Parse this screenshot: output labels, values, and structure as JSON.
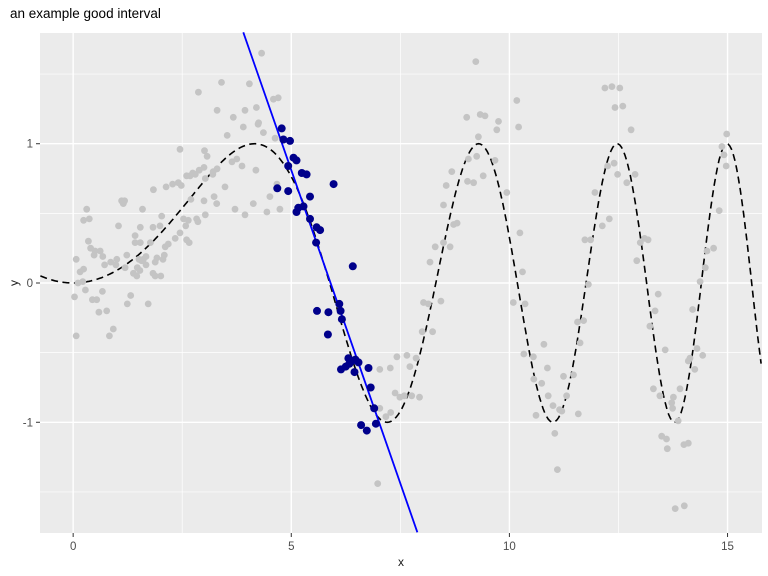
{
  "title": "an example good interval",
  "axes": {
    "x_label": "x",
    "y_label": "y",
    "x_tick_labels": [
      "0",
      "5",
      "10",
      "15"
    ],
    "y_tick_labels": [
      "-1",
      "0",
      "1"
    ]
  },
  "style": {
    "page_bg": "#FFFFFF",
    "panel_bg": "#EBEBEB",
    "grid_color": "#FFFFFF",
    "tick_color": "#333333",
    "tick_label_color": "#4D4D4D",
    "axis_title_color": "#1A1A1A",
    "title_color": "#000000",
    "gray_point_color": "#C4C4C4",
    "navy_point_color": "#00008B",
    "blue_line_color": "#0000FF",
    "curve_color": "#000000"
  },
  "chart_data": {
    "type": "scatter",
    "title": "an example good interval",
    "xlabel": "x",
    "ylabel": "y",
    "xlim": [
      -0.76,
      15.79
    ],
    "ylim": [
      -1.795,
      1.795
    ],
    "x_ticks": [
      0,
      5,
      10,
      15
    ],
    "y_ticks": [
      -1,
      0,
      1
    ],
    "x_minor_ticks": [
      2.5,
      7.5,
      12.5
    ],
    "y_minor_ticks": [
      -1.5,
      -0.5,
      0.5,
      1.5
    ],
    "grid": true,
    "legend": false,
    "series": [
      {
        "name": "background points",
        "type": "scatter",
        "color": "#C4C4C4",
        "radius": 3.4,
        "points": [
          [
            0.03,
            -0.1
          ],
          [
            0.07,
            -0.38
          ],
          [
            0.07,
            0.17
          ],
          [
            0.11,
            0.0
          ],
          [
            0.16,
            0.08
          ],
          [
            0.22,
            0.01
          ],
          [
            0.24,
            0.45
          ],
          [
            0.24,
            0.1
          ],
          [
            0.28,
            -0.05
          ],
          [
            0.31,
            0.53
          ],
          [
            0.35,
            0.3
          ],
          [
            0.37,
            0.46
          ],
          [
            0.4,
            0.25
          ],
          [
            0.44,
            -0.12
          ],
          [
            0.48,
            0.2
          ],
          [
            0.5,
            0.23
          ],
          [
            0.54,
            -0.12
          ],
          [
            0.59,
            -0.21
          ],
          [
            0.62,
            0.23
          ],
          [
            0.67,
            -0.06
          ],
          [
            0.68,
            0.19
          ],
          [
            0.72,
            0.13
          ],
          [
            0.77,
            -0.2
          ],
          [
            0.83,
            -0.38
          ],
          [
            0.86,
            0.15
          ],
          [
            0.92,
            -0.33
          ],
          [
            0.98,
            0.13
          ],
          [
            1.0,
            0.17
          ],
          [
            1.04,
            0.41
          ],
          [
            1.11,
            0.59
          ],
          [
            1.15,
            0.57
          ],
          [
            1.18,
            0.59
          ],
          [
            1.19,
            0.11
          ],
          [
            1.23,
            0.2
          ],
          [
            1.24,
            -0.15
          ],
          [
            1.32,
            -0.09
          ],
          [
            1.38,
            0.07
          ],
          [
            1.42,
            0.29
          ],
          [
            1.42,
            0.34
          ],
          [
            1.46,
            0.05
          ],
          [
            1.47,
            0.11
          ],
          [
            1.51,
            0.17
          ],
          [
            1.53,
            0.09
          ],
          [
            1.54,
            0.4
          ],
          [
            1.54,
            0.29
          ],
          [
            1.57,
            0.16
          ],
          [
            1.59,
            0.53
          ],
          [
            1.61,
            0.17
          ],
          [
            1.67,
            0.19
          ],
          [
            1.67,
            0.13
          ],
          [
            1.72,
            -0.15
          ],
          [
            1.77,
            0.29
          ],
          [
            1.83,
            0.4
          ],
          [
            1.83,
            0.07
          ],
          [
            1.84,
            0.67
          ],
          [
            1.88,
            0.15
          ],
          [
            1.88,
            0.05
          ],
          [
            1.92,
            0.18
          ],
          [
            1.99,
            0.41
          ],
          [
            2.01,
            0.05
          ],
          [
            2.03,
            0.48
          ],
          [
            2.06,
            0.17
          ],
          [
            2.09,
            0.2
          ],
          [
            2.11,
            0.26
          ],
          [
            2.13,
            0.69
          ],
          [
            2.18,
            0.28
          ],
          [
            2.28,
            0.71
          ],
          [
            2.34,
            0.32
          ],
          [
            2.41,
            0.72
          ],
          [
            2.45,
            0.96
          ],
          [
            2.45,
            0.36
          ],
          [
            2.48,
            0.7
          ],
          [
            2.53,
            0.46
          ],
          [
            2.58,
            0.41
          ],
          [
            2.6,
            0.77
          ],
          [
            2.6,
            0.31
          ],
          [
            2.64,
            0.45
          ],
          [
            2.66,
            0.29
          ],
          [
            2.68,
            0.77
          ],
          [
            2.7,
            0.6
          ],
          [
            2.74,
            0.79
          ],
          [
            2.8,
            0.78
          ],
          [
            2.83,
            0.46
          ],
          [
            2.86,
            0.44
          ],
          [
            2.87,
            1.37
          ],
          [
            2.89,
            0.81
          ],
          [
            3.0,
            0.83
          ],
          [
            3.0,
            0.59
          ],
          [
            3.01,
            0.95
          ],
          [
            3.03,
            0.75
          ],
          [
            3.03,
            0.49
          ],
          [
            3.07,
            0.91
          ],
          [
            3.2,
            0.78
          ],
          [
            3.21,
            0.8
          ],
          [
            3.23,
            0.62
          ],
          [
            3.29,
            0.57
          ],
          [
            3.3,
            1.24
          ],
          [
            3.3,
            0.82
          ],
          [
            3.4,
            1.44
          ],
          [
            3.48,
            0.69
          ],
          [
            3.53,
            1.06
          ],
          [
            3.64,
            0.87
          ],
          [
            3.67,
            1.19
          ],
          [
            3.71,
            0.53
          ],
          [
            3.75,
            0.89
          ],
          [
            3.87,
            0.84
          ],
          [
            3.9,
            1.12
          ],
          [
            3.94,
            1.24
          ],
          [
            3.94,
            0.49
          ],
          [
            4.04,
            1.43
          ],
          [
            4.13,
            0.57
          ],
          [
            4.19,
            0.81
          ],
          [
            4.2,
            1.26
          ],
          [
            4.24,
            1.14
          ],
          [
            4.25,
            1.15
          ],
          [
            4.32,
            1.65
          ],
          [
            4.36,
            1.08
          ],
          [
            4.44,
            0.51
          ],
          [
            4.51,
            0.62
          ],
          [
            4.59,
            1.32
          ],
          [
            4.63,
            1.04
          ],
          [
            4.67,
            0.71
          ],
          [
            4.7,
            1.33
          ],
          [
            4.74,
            0.53
          ],
          [
            6.98,
            -1.44
          ],
          [
            7.03,
            -0.62
          ],
          [
            7.03,
            -0.9
          ],
          [
            7.17,
            -0.96
          ],
          [
            7.27,
            -0.61
          ],
          [
            7.28,
            -0.93
          ],
          [
            7.38,
            -0.79
          ],
          [
            7.42,
            -0.53
          ],
          [
            7.49,
            -0.82
          ],
          [
            7.59,
            -0.81
          ],
          [
            7.65,
            -0.52
          ],
          [
            7.72,
            -0.6
          ],
          [
            7.76,
            -0.81
          ],
          [
            7.86,
            -0.54
          ],
          [
            7.94,
            -0.82
          ],
          [
            8.0,
            -0.35
          ],
          [
            8.03,
            -0.14
          ],
          [
            8.14,
            -0.15
          ],
          [
            8.18,
            0.15
          ],
          [
            8.24,
            -0.35
          ],
          [
            8.3,
            0.26
          ],
          [
            8.43,
            -0.13
          ],
          [
            8.49,
            0.29
          ],
          [
            8.49,
            0.56
          ],
          [
            8.55,
            0.7
          ],
          [
            8.64,
            0.26
          ],
          [
            8.68,
            0.8
          ],
          [
            8.72,
            0.42
          ],
          [
            8.8,
            0.43
          ],
          [
            9.02,
            1.19
          ],
          [
            9.04,
            0.73
          ],
          [
            9.06,
            0.89
          ],
          [
            9.18,
            0.72
          ],
          [
            9.23,
            1.59
          ],
          [
            9.25,
            0.91
          ],
          [
            9.29,
            1.05
          ],
          [
            9.33,
            1.21
          ],
          [
            9.4,
            0.77
          ],
          [
            9.44,
            1.2
          ],
          [
            9.67,
            0.88
          ],
          [
            9.71,
            1.1
          ],
          [
            9.75,
            1.16
          ],
          [
            9.94,
            0.65
          ],
          [
            10.09,
            -0.14
          ],
          [
            10.17,
            1.31
          ],
          [
            10.21,
            1.12
          ],
          [
            10.24,
            0.36
          ],
          [
            10.3,
            0.08
          ],
          [
            10.33,
            -0.51
          ],
          [
            10.36,
            -0.15
          ],
          [
            10.55,
            -0.53
          ],
          [
            10.56,
            -0.69
          ],
          [
            10.61,
            -0.95
          ],
          [
            10.74,
            -0.72
          ],
          [
            10.79,
            -0.44
          ],
          [
            10.87,
            -0.61
          ],
          [
            10.89,
            -0.81
          ],
          [
            11.0,
            -0.88
          ],
          [
            11.04,
            -1.08
          ],
          [
            11.1,
            -1.34
          ],
          [
            11.15,
            -0.91
          ],
          [
            11.2,
            -0.92
          ],
          [
            11.24,
            -0.67
          ],
          [
            11.31,
            -0.81
          ],
          [
            11.47,
            -0.66
          ],
          [
            11.56,
            -0.28
          ],
          [
            11.58,
            -0.94
          ],
          [
            11.62,
            -0.43
          ],
          [
            11.7,
            -0.27
          ],
          [
            11.73,
            0.31
          ],
          [
            11.81,
            -0.01
          ],
          [
            11.86,
            0.31
          ],
          [
            11.96,
            0.65
          ],
          [
            12.13,
            0.41
          ],
          [
            12.19,
            1.4
          ],
          [
            12.25,
            0.84
          ],
          [
            12.29,
            0.46
          ],
          [
            12.35,
            1.41
          ],
          [
            12.4,
            0.86
          ],
          [
            12.42,
            1.26
          ],
          [
            12.48,
            0.78
          ],
          [
            12.53,
            1.4
          ],
          [
            12.6,
            1.27
          ],
          [
            12.69,
            0.72
          ],
          [
            12.79,
            1.1
          ],
          [
            12.88,
            0.78
          ],
          [
            12.92,
            0.16
          ],
          [
            13.0,
            0.29
          ],
          [
            13.1,
            0.32
          ],
          [
            13.18,
            0.31
          ],
          [
            13.22,
            -0.31
          ],
          [
            13.3,
            -0.76
          ],
          [
            13.34,
            -0.2
          ],
          [
            13.41,
            -0.08
          ],
          [
            13.45,
            -0.81
          ],
          [
            13.49,
            -1.1
          ],
          [
            13.57,
            -0.48
          ],
          [
            13.6,
            -1.12
          ],
          [
            13.62,
            -1.19
          ],
          [
            13.72,
            -0.86
          ],
          [
            13.74,
            -0.9
          ],
          [
            13.76,
            -0.82
          ],
          [
            13.8,
            -1.62
          ],
          [
            13.87,
            -0.99
          ],
          [
            13.91,
            -0.76
          ],
          [
            14.0,
            -1.16
          ],
          [
            14.01,
            -1.6
          ],
          [
            14.1,
            -1.15
          ],
          [
            14.1,
            -0.56
          ],
          [
            14.14,
            -0.54
          ],
          [
            14.2,
            -0.19
          ],
          [
            14.25,
            -0.62
          ],
          [
            14.3,
            -0.47
          ],
          [
            14.37,
            0.01
          ],
          [
            14.43,
            -0.52
          ],
          [
            14.49,
            0.11
          ],
          [
            14.53,
            0.23
          ],
          [
            14.68,
            0.25
          ],
          [
            14.81,
            0.52
          ],
          [
            14.87,
            0.98
          ],
          [
            14.92,
            0.92
          ],
          [
            14.97,
            0.84
          ],
          [
            14.98,
            1.07
          ]
        ]
      },
      {
        "name": "interval points",
        "type": "scatter",
        "color": "#00008B",
        "radius": 4,
        "points": [
          [
            4.68,
            0.68
          ],
          [
            4.78,
            1.11
          ],
          [
            4.82,
            1.03
          ],
          [
            4.93,
            0.84
          ],
          [
            4.93,
            0.66
          ],
          [
            4.97,
            1.02
          ],
          [
            5.05,
            0.9
          ],
          [
            5.12,
            0.88
          ],
          [
            5.12,
            0.51
          ],
          [
            5.16,
            0.54
          ],
          [
            5.24,
            0.79
          ],
          [
            5.28,
            0.55
          ],
          [
            5.35,
            0.78
          ],
          [
            5.43,
            0.62
          ],
          [
            5.43,
            0.46
          ],
          [
            5.57,
            0.29
          ],
          [
            5.58,
            0.4
          ],
          [
            5.66,
            0.38
          ],
          [
            5.97,
            0.71
          ],
          [
            6.41,
            0.12
          ],
          [
            5.59,
            -0.2
          ],
          [
            5.84,
            -0.37
          ],
          [
            5.85,
            -0.21
          ],
          [
            6.1,
            -0.15
          ],
          [
            6.13,
            -0.2
          ],
          [
            6.16,
            -0.26
          ],
          [
            6.14,
            -0.62
          ],
          [
            6.25,
            -0.6
          ],
          [
            6.31,
            -0.54
          ],
          [
            6.33,
            -0.58
          ],
          [
            6.39,
            -0.56
          ],
          [
            6.45,
            -0.64
          ],
          [
            6.47,
            -0.55
          ],
          [
            6.54,
            -0.57
          ],
          [
            6.6,
            -1.02
          ],
          [
            6.73,
            -1.06
          ],
          [
            6.77,
            -0.61
          ],
          [
            6.82,
            -0.75
          ],
          [
            6.9,
            -0.9
          ],
          [
            6.94,
            -1.01
          ]
        ]
      },
      {
        "name": "true function curve",
        "type": "line",
        "line_style": "dashed",
        "color": "#000000",
        "formula": "y = sin(x^2 / 11)",
        "formula_js": "Math.sin(x*x/11)",
        "x_range": [
          -0.75,
          15.79
        ],
        "width": 1.6,
        "dash": "7,4.5"
      },
      {
        "name": "local linear fit",
        "type": "line",
        "line_style": "solid",
        "color": "#0000FF",
        "endpoints": [
          [
            3.9,
            1.8
          ],
          [
            7.89,
            -1.79
          ]
        ],
        "slope": -0.9,
        "intercept": 5.31,
        "width": 1.8
      }
    ]
  }
}
